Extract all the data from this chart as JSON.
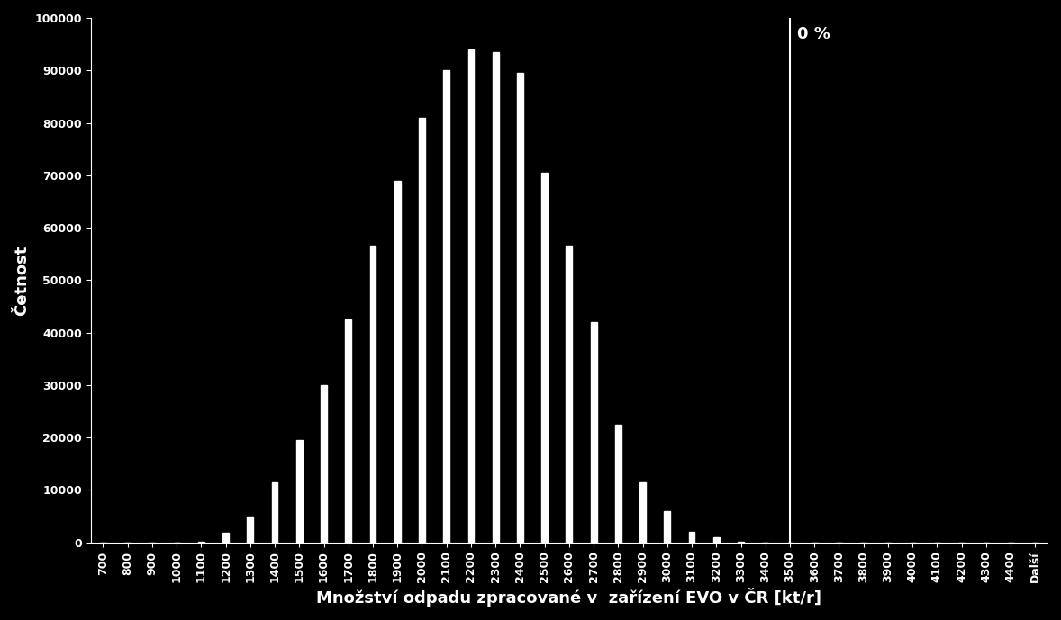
{
  "background_color": "#000000",
  "text_color": "#ffffff",
  "bar_color": "#ffffff",
  "title": "",
  "xlabel": "Množství odpadu zpracované v  zařízení EVO v ČR [kt/r]",
  "ylabel": "Četnost",
  "ylim": [
    0,
    100000
  ],
  "yticks": [
    0,
    10000,
    20000,
    30000,
    40000,
    50000,
    60000,
    70000,
    80000,
    90000,
    100000
  ],
  "vline_label": "0 %",
  "categories": [
    "700",
    "800",
    "900",
    "1000",
    "1100",
    "1200",
    "1300",
    "1400",
    "1500",
    "1600",
    "1700",
    "1800",
    "1900",
    "2000",
    "2100",
    "2200",
    "2300",
    "2400",
    "2500",
    "2600",
    "2700",
    "2800",
    "2900",
    "3000",
    "3100",
    "3200",
    "3300",
    "3400",
    "3500",
    "3600",
    "3700",
    "3800",
    "3900",
    "4000",
    "4100",
    "4200",
    "4300",
    "4400",
    "Další"
  ],
  "values": [
    0,
    0,
    0,
    0,
    200,
    1800,
    5000,
    11500,
    19500,
    30000,
    42500,
    56500,
    69000,
    81000,
    90000,
    94000,
    93500,
    89500,
    70500,
    56500,
    42000,
    22500,
    11500,
    6000,
    2000,
    1000,
    200,
    0,
    0,
    0,
    0,
    0,
    0,
    0,
    0,
    0,
    0,
    0,
    0
  ],
  "vline_category_idx": 28,
  "bar_width": 0.25,
  "xlabel_fontsize": 13,
  "ylabel_fontsize": 13,
  "tick_fontsize": 9,
  "vline_label_fontsize": 13
}
